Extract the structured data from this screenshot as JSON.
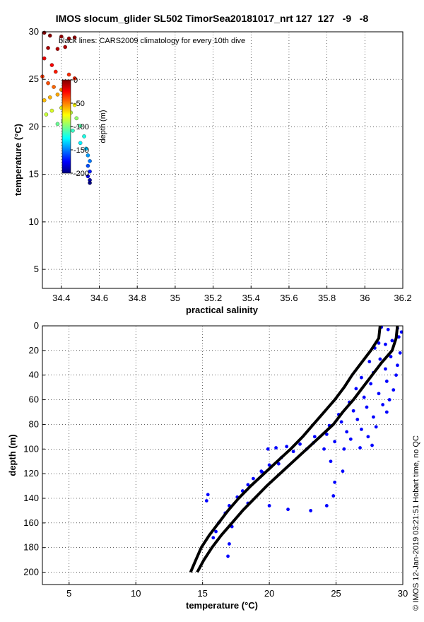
{
  "figure": {
    "title": "IMOS slocum_glider SL502 TimorSea20181017_nrt 127  127   -9   -8",
    "side_note": "© IMOS 12-Jan-2019 03:21:51 Hobart time, no QC"
  },
  "chart_data": [
    {
      "type": "scatter",
      "xlabel": "practical salinity",
      "ylabel": "temperature (°C)",
      "xlim": [
        34.3,
        36.2
      ],
      "ylim": [
        3,
        30
      ],
      "xticks": [
        34.4,
        34.6,
        34.8,
        35,
        35.2,
        35.4,
        35.6,
        35.8,
        36,
        36.2
      ],
      "yticks": [
        5,
        10,
        15,
        20,
        25,
        30
      ],
      "grid": true,
      "annotation": "black lines: CARS2009 climatology for every 10th dive",
      "colorbar": {
        "label": "depth (m)",
        "ticks": [
          "0",
          "-50",
          "-100",
          "-150",
          "-200"
        ],
        "range": [
          -200,
          0
        ],
        "colormap": "jet"
      },
      "series": [
        {
          "color_by": "depth",
          "points": [
            [
              34.31,
              29.9,
              -1
            ],
            [
              34.34,
              29.6,
              -2
            ],
            [
              34.4,
              29.5,
              -3
            ],
            [
              34.44,
              29.3,
              -4
            ],
            [
              34.47,
              29.4,
              -2
            ],
            [
              34.33,
              28.3,
              -8
            ],
            [
              34.38,
              28.2,
              -10
            ],
            [
              34.42,
              28.4,
              -9
            ],
            [
              34.31,
              27.2,
              -20
            ],
            [
              34.35,
              26.5,
              -24
            ],
            [
              34.37,
              25.8,
              -30
            ],
            [
              34.44,
              25.5,
              -34
            ],
            [
              34.47,
              25.1,
              -32
            ],
            [
              34.3,
              25.3,
              -36
            ],
            [
              34.33,
              24.6,
              -40
            ],
            [
              34.36,
              24.2,
              -45
            ],
            [
              34.4,
              23.9,
              -52
            ],
            [
              34.42,
              24.2,
              -48
            ],
            [
              34.38,
              23.4,
              -58
            ],
            [
              34.34,
              23.1,
              -60
            ],
            [
              34.31,
              22.8,
              -62
            ],
            [
              34.44,
              22.9,
              -68
            ],
            [
              34.47,
              22.3,
              -75
            ],
            [
              34.4,
              22.0,
              -80
            ],
            [
              34.35,
              21.7,
              -82
            ],
            [
              34.32,
              21.3,
              -86
            ],
            [
              34.45,
              21.5,
              -88
            ],
            [
              34.48,
              20.9,
              -96
            ],
            [
              34.41,
              20.6,
              -100
            ],
            [
              34.38,
              20.3,
              -104
            ],
            [
              34.5,
              20.1,
              -108
            ],
            [
              34.46,
              19.6,
              -114
            ],
            [
              34.52,
              19.0,
              -120
            ],
            [
              34.5,
              18.3,
              -128
            ],
            [
              34.53,
              17.7,
              -136
            ],
            [
              34.54,
              17.0,
              -145
            ],
            [
              34.55,
              16.4,
              -152
            ],
            [
              34.54,
              15.9,
              -160
            ],
            [
              34.55,
              15.3,
              -170
            ],
            [
              34.54,
              14.8,
              -180
            ],
            [
              34.55,
              14.4,
              -192
            ],
            [
              34.55,
              14.1,
              -200
            ]
          ]
        }
      ]
    },
    {
      "type": "scatter",
      "xlabel": "temperature (°C)",
      "ylabel": "depth (m)",
      "xlim": [
        3,
        30
      ],
      "ylim": [
        210,
        0
      ],
      "xticks": [
        5,
        10,
        15,
        20,
        25,
        30
      ],
      "yticks": [
        0,
        20,
        40,
        60,
        80,
        100,
        120,
        140,
        160,
        180,
        200
      ],
      "grid": true,
      "series": [
        {
          "color": "#0000ff",
          "points": [
            [
              28.4,
              1
            ],
            [
              28.9,
              3
            ],
            [
              29.6,
              2
            ],
            [
              29.9,
              5
            ],
            [
              29.7,
              9
            ],
            [
              29.2,
              12
            ],
            [
              28.7,
              15
            ],
            [
              28.2,
              14
            ],
            [
              27.9,
              18
            ],
            [
              29.8,
              22
            ],
            [
              29.1,
              25
            ],
            [
              28.3,
              27
            ],
            [
              27.5,
              29
            ],
            [
              29.6,
              32
            ],
            [
              28.7,
              35
            ],
            [
              27.8,
              38
            ],
            [
              26.9,
              42
            ],
            [
              29.5,
              40
            ],
            [
              28.8,
              45
            ],
            [
              27.6,
              47
            ],
            [
              26.5,
              51
            ],
            [
              29.3,
              52
            ],
            [
              28.2,
              55
            ],
            [
              27.1,
              58
            ],
            [
              26.0,
              62
            ],
            [
              29.0,
              60
            ],
            [
              28.5,
              64
            ],
            [
              27.3,
              66
            ],
            [
              26.3,
              69
            ],
            [
              25.2,
              72
            ],
            [
              28.8,
              70
            ],
            [
              27.8,
              74
            ],
            [
              26.6,
              76
            ],
            [
              25.4,
              78
            ],
            [
              24.5,
              81
            ],
            [
              28.0,
              82
            ],
            [
              26.9,
              84
            ],
            [
              25.8,
              86
            ],
            [
              24.3,
              88
            ],
            [
              23.4,
              90
            ],
            [
              27.4,
              90
            ],
            [
              26.1,
              92
            ],
            [
              24.9,
              94
            ],
            [
              23.3,
              95
            ],
            [
              22.3,
              96
            ],
            [
              21.3,
              98
            ],
            [
              20.5,
              99
            ],
            [
              19.9,
              100
            ],
            [
              22.8,
              100
            ],
            [
              24.1,
              100
            ],
            [
              25.6,
              100
            ],
            [
              26.8,
              99
            ],
            [
              27.7,
              97
            ],
            [
              21.8,
              102
            ],
            [
              20.9,
              107
            ],
            [
              20.0,
              113
            ],
            [
              19.4,
              118
            ],
            [
              18.8,
              124
            ],
            [
              18.4,
              129
            ],
            [
              18.0,
              134
            ],
            [
              17.6,
              139
            ],
            [
              17.0,
              146
            ],
            [
              16.7,
              152
            ],
            [
              16.2,
              160
            ],
            [
              16.0,
              167
            ],
            [
              15.8,
              172
            ],
            [
              24.6,
              110
            ],
            [
              25.5,
              118
            ],
            [
              24.9,
              127
            ],
            [
              24.8,
              138
            ],
            [
              24.3,
              146
            ],
            [
              23.1,
              150
            ],
            [
              21.4,
              149
            ],
            [
              20.0,
              146
            ],
            [
              18.4,
              144
            ],
            [
              17.2,
              163
            ],
            [
              17.0,
              177
            ],
            [
              16.9,
              187
            ],
            [
              15.4,
              137
            ],
            [
              15.3,
              142
            ],
            [
              20.7,
              112
            ],
            [
              19.5,
              119
            ]
          ]
        },
        {
          "name": "",
          "color": "#000000",
          "points": [
            [
              28.3,
              0
            ],
            [
              28.2,
              10
            ],
            [
              27.6,
              20
            ],
            [
              26.9,
              30
            ],
            [
              26.2,
              40
            ],
            [
              25.6,
              50
            ],
            [
              24.9,
              60
            ],
            [
              24.1,
              70
            ],
            [
              23.3,
              80
            ],
            [
              22.5,
              90
            ],
            [
              21.6,
              100
            ],
            [
              20.6,
              110
            ],
            [
              19.6,
              120
            ],
            [
              18.6,
              130
            ],
            [
              17.7,
              140
            ],
            [
              16.9,
              150
            ],
            [
              16.2,
              160
            ],
            [
              15.5,
              170
            ],
            [
              14.9,
              180
            ],
            [
              14.5,
              190
            ],
            [
              14.1,
              200
            ]
          ]
        },
        {
          "name": "",
          "color": "#000000",
          "points": [
            [
              29.6,
              0
            ],
            [
              29.5,
              10
            ],
            [
              29.2,
              20
            ],
            [
              28.4,
              30
            ],
            [
              27.7,
              40
            ],
            [
              27.0,
              50
            ],
            [
              26.3,
              60
            ],
            [
              25.5,
              70
            ],
            [
              24.8,
              80
            ],
            [
              23.8,
              90
            ],
            [
              22.8,
              100
            ],
            [
              21.8,
              110
            ],
            [
              20.8,
              120
            ],
            [
              19.8,
              130
            ],
            [
              18.9,
              140
            ],
            [
              18.0,
              150
            ],
            [
              17.2,
              160
            ],
            [
              16.4,
              170
            ],
            [
              15.7,
              180
            ],
            [
              15.1,
              190
            ],
            [
              14.6,
              200
            ]
          ]
        }
      ]
    }
  ]
}
